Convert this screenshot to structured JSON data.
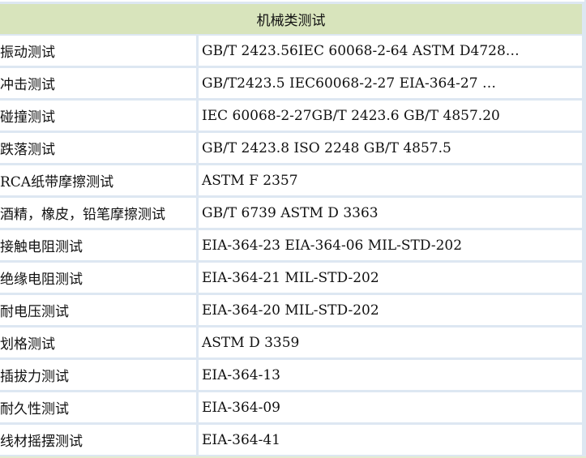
{
  "table": {
    "header": "机械类测试",
    "rows": [
      {
        "name": "振动测试",
        "standards": "GB/T 2423.56IEC 60068-2-64 ASTM D4728…"
      },
      {
        "name": "冲击测试",
        "standards": "GB/T2423.5 IEC60068-2-27 EIA-364-27 …"
      },
      {
        "name": "碰撞测试",
        "standards": "IEC 60068-2-27GB/T 2423.6 GB/T 4857.20"
      },
      {
        "name": "跌落测试",
        "standards": "GB/T 2423.8 ISO 2248 GB/T 4857.5"
      },
      {
        "name": "RCA纸带摩擦测试",
        "standards": "ASTM F 2357"
      },
      {
        "name": "酒精，橡皮，铅笔摩擦测试",
        "standards": "GB/T 6739 ASTM D 3363"
      },
      {
        "name": "接触电阻测试",
        "standards": "EIA-364-23 EIA-364-06 MIL-STD-202"
      },
      {
        "name": "绝缘电阻测试",
        "standards": "EIA-364-21 MIL-STD-202"
      },
      {
        "name": "耐电压测试",
        "standards": "EIA-364-20 MIL-STD-202"
      },
      {
        "name": "划格测试",
        "standards": "ASTM D 3359"
      },
      {
        "name": "插拔力测试",
        "standards": "EIA-364-13"
      },
      {
        "name": "耐久性测试",
        "standards": "EIA-364-09"
      },
      {
        "name": "线材摇摆测试",
        "standards": "EIA-364-41"
      }
    ]
  },
  "colors": {
    "header_bg": "#d8e4bc",
    "grid": "#dde7f2"
  }
}
